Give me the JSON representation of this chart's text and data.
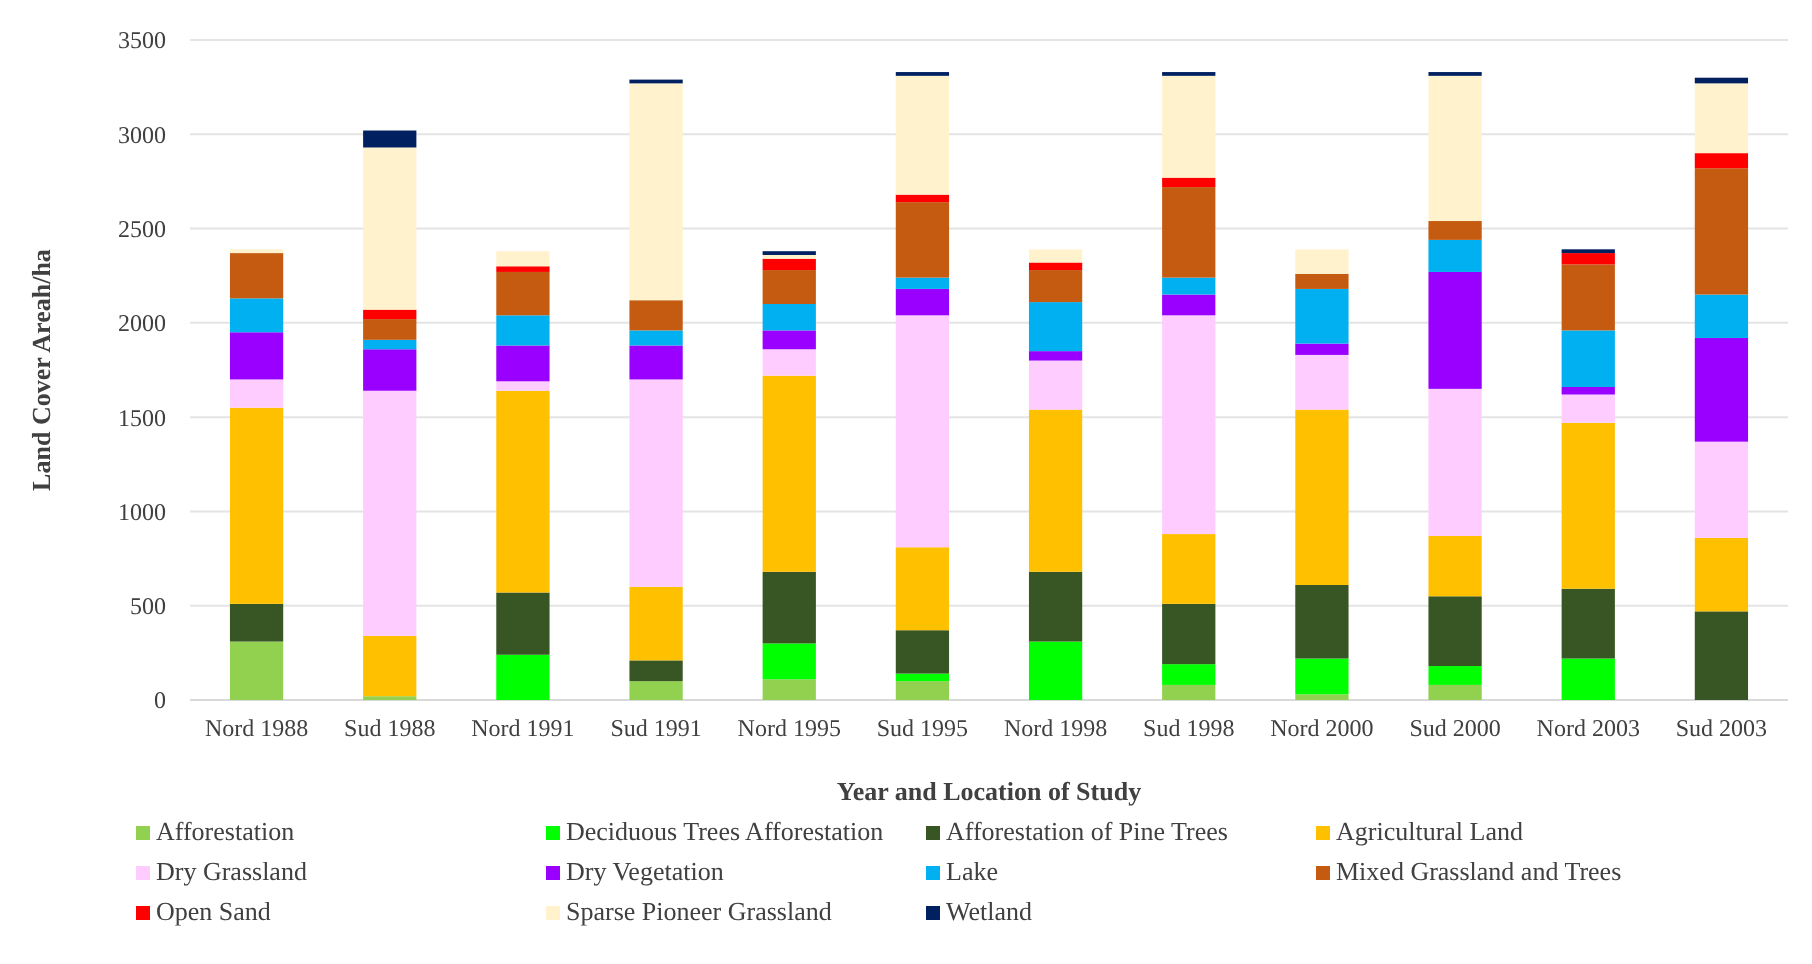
{
  "chart_data": {
    "type": "bar",
    "stacked": true,
    "xlabel": "Year and Location of Study",
    "ylabel": "Land Cover Areah/ha",
    "categories": [
      "Nord 1988",
      "Sud 1988",
      "Nord 1991",
      "Sud 1991",
      "Nord 1995",
      "Sud 1995",
      "Nord 1998",
      "Sud 1998",
      "Nord 2000",
      "Sud 2000",
      "Nord 2003",
      "Sud 2003"
    ],
    "ylim": [
      0,
      3500
    ],
    "yticks": [
      0,
      500,
      1000,
      1500,
      2000,
      2500,
      3000,
      3500
    ],
    "grid": "y",
    "legend": "bottom",
    "series": [
      {
        "name": "Afforestation",
        "color": "#92d050",
        "values": [
          310,
          20,
          0,
          100,
          110,
          100,
          0,
          80,
          30,
          80,
          0,
          0
        ]
      },
      {
        "name": "Deciduous Trees Afforestation",
        "color": "#00ff00",
        "values": [
          0,
          0,
          240,
          0,
          190,
          40,
          310,
          110,
          190,
          100,
          220,
          0
        ]
      },
      {
        "name": "Afforestation of Pine Trees",
        "color": "#375623",
        "values": [
          200,
          0,
          330,
          110,
          380,
          230,
          370,
          320,
          390,
          370,
          370,
          470
        ]
      },
      {
        "name": "Agricultural Land",
        "color": "#ffc000",
        "values": [
          1040,
          320,
          1070,
          390,
          1040,
          440,
          860,
          370,
          930,
          320,
          880,
          390
        ]
      },
      {
        "name": "Dry Grassland",
        "color": "#ffccff",
        "values": [
          150,
          1300,
          50,
          1100,
          140,
          1230,
          260,
          1160,
          290,
          780,
          150,
          510
        ]
      },
      {
        "name": "Dry Vegetation",
        "color": "#9900ff",
        "values": [
          250,
          220,
          190,
          180,
          100,
          140,
          50,
          110,
          60,
          620,
          40,
          550
        ]
      },
      {
        "name": "Lake",
        "color": "#00b0f0",
        "values": [
          180,
          50,
          160,
          80,
          140,
          60,
          260,
          90,
          290,
          170,
          300,
          230
        ]
      },
      {
        "name": "Mixed Grassland and Trees",
        "color": "#c55a11",
        "values": [
          240,
          110,
          230,
          160,
          180,
          400,
          170,
          480,
          80,
          100,
          350,
          670
        ]
      },
      {
        "name": "Open Sand",
        "color": "#ff0000",
        "values": [
          0,
          50,
          30,
          0,
          60,
          40,
          40,
          50,
          0,
          0,
          60,
          80
        ]
      },
      {
        "name": "Sparse Pioneer Grassland",
        "color": "#fff2cc",
        "values": [
          20,
          860,
          80,
          1150,
          20,
          630,
          70,
          540,
          130,
          770,
          0,
          370
        ]
      },
      {
        "name": "Wetland",
        "color": "#002060",
        "values": [
          0,
          90,
          0,
          20,
          20,
          20,
          0,
          20,
          0,
          20,
          20,
          30
        ]
      }
    ]
  }
}
